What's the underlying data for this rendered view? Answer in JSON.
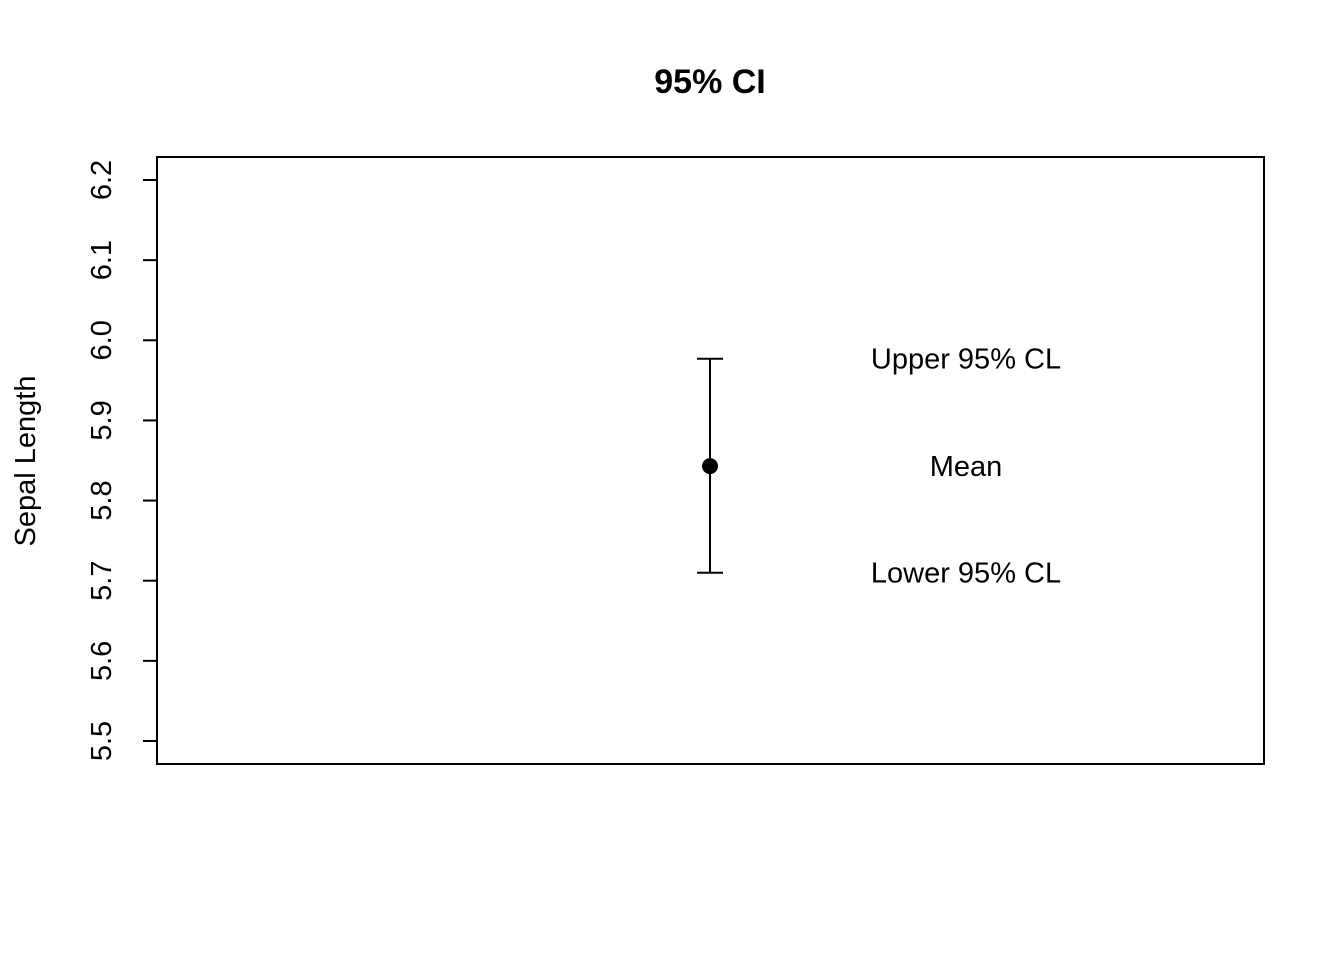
{
  "chart_data": {
    "type": "scatter",
    "title": "95% CI",
    "xlabel": "",
    "ylabel": "Sepal Length",
    "ylim": [
      5.5,
      6.2
    ],
    "yticks": [
      "5.5",
      "5.6",
      "5.7",
      "5.8",
      "5.9",
      "6.0",
      "6.1",
      "6.2"
    ],
    "grid": false,
    "point": {
      "x": 1,
      "mean": 5.843,
      "lower": 5.71,
      "upper": 5.977
    },
    "annotations": [
      {
        "name": "upper",
        "text": "Upper 95% CL",
        "y": 5.977
      },
      {
        "name": "mean",
        "text": "Mean",
        "y": 5.843
      },
      {
        "name": "lower",
        "text": "Lower 95% CL",
        "y": 5.71
      }
    ]
  }
}
